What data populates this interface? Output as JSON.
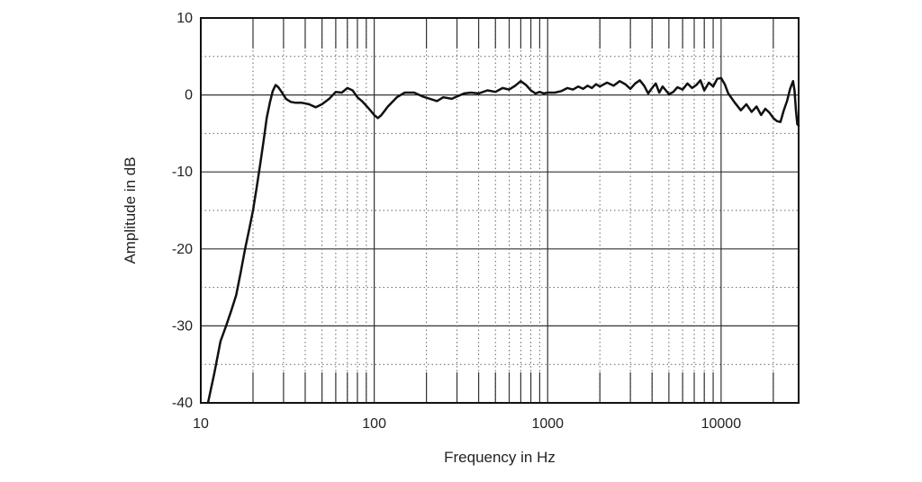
{
  "chart_data": {
    "type": "line",
    "xlabel": "Frequency in Hz",
    "ylabel": "Amplitude in dB",
    "x_scale": "log",
    "xlim": [
      10,
      28000
    ],
    "ylim": [
      -40,
      10
    ],
    "x_ticks": [
      10,
      100,
      1000,
      10000
    ],
    "x_tick_labels": [
      "10",
      "100",
      "1000",
      "10000"
    ],
    "y_ticks": [
      10,
      0,
      -10,
      -20,
      -30,
      -40
    ],
    "y_tick_labels": [
      "10",
      "0",
      "-10",
      "-20",
      "-30",
      "-40"
    ],
    "grid": true,
    "line_color": "#111111",
    "series": [
      {
        "x": [
          11,
          12,
          13,
          14,
          15,
          16,
          17,
          18,
          19,
          20,
          21,
          22,
          23,
          24,
          25,
          26,
          27,
          28,
          29,
          30,
          31,
          33,
          35,
          38,
          42,
          46,
          50,
          55,
          60,
          65,
          70,
          75,
          80,
          85,
          90,
          95,
          100,
          105,
          110,
          120,
          135,
          150,
          170,
          190,
          210,
          230,
          250,
          280,
          300,
          330,
          360,
          400,
          450,
          500,
          550,
          600,
          650,
          700,
          750,
          800,
          850,
          900,
          950,
          1000,
          1100,
          1200,
          1300,
          1400,
          1500,
          1600,
          1700,
          1800,
          1900,
          2000,
          2200,
          2400,
          2600,
          2800,
          3000,
          3200,
          3400,
          3600,
          3800,
          4000,
          4200,
          4400,
          4600,
          4800,
          5000,
          5300,
          5600,
          6000,
          6400,
          6800,
          7200,
          7600,
          8000,
          8500,
          9000,
          9500,
          10000,
          10500,
          11000,
          12000,
          13000,
          14000,
          15000,
          16000,
          17000,
          18000,
          19000,
          20000,
          21000,
          22000,
          23000,
          24000,
          25000,
          26000,
          26500,
          27000,
          27500,
          28000
        ],
        "y": [
          -40,
          -36,
          -32,
          -30,
          -28,
          -26,
          -23,
          -20,
          -17.5,
          -15,
          -12,
          -9,
          -6,
          -3,
          -1,
          0.5,
          1.3,
          1.0,
          0.5,
          0,
          -0.5,
          -0.9,
          -1.0,
          -1.0,
          -1.2,
          -1.6,
          -1.2,
          -0.5,
          0.4,
          0.3,
          0.9,
          0.6,
          -0.3,
          -0.8,
          -1.4,
          -2.0,
          -2.6,
          -3.0,
          -2.6,
          -1.5,
          -0.3,
          0.3,
          0.3,
          -0.2,
          -0.5,
          -0.8,
          -0.3,
          -0.5,
          -0.2,
          0.2,
          0.3,
          0.2,
          0.6,
          0.4,
          0.9,
          0.7,
          1.2,
          1.8,
          1.3,
          0.6,
          0.2,
          0.4,
          0.2,
          0.3,
          0.3,
          0.5,
          0.9,
          0.7,
          1.1,
          0.8,
          1.2,
          0.9,
          1.4,
          1.1,
          1.6,
          1.2,
          1.8,
          1.4,
          0.8,
          1.5,
          1.9,
          1.2,
          0.2,
          0.9,
          1.5,
          0.3,
          1.1,
          0.6,
          0.1,
          0.4,
          1.0,
          0.7,
          1.5,
          0.9,
          1.3,
          1.9,
          0.6,
          1.6,
          1.1,
          2.1,
          2.2,
          1.4,
          0.2,
          -1.0,
          -2.0,
          -1.2,
          -2.2,
          -1.5,
          -2.6,
          -1.8,
          -2.3,
          -3.0,
          -3.4,
          -3.5,
          -2.0,
          -0.8,
          0.8,
          1.8,
          0.6,
          -2.0,
          -3.8,
          -4.0
        ]
      }
    ]
  }
}
